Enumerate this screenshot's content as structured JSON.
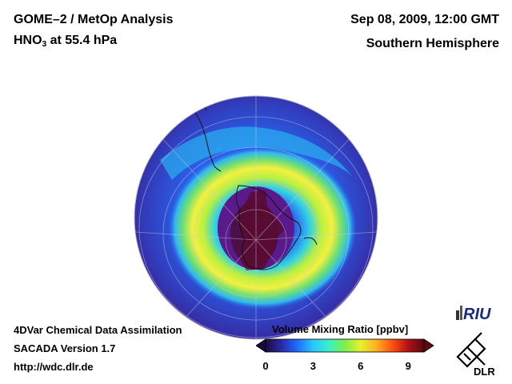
{
  "header": {
    "title_line1": "GOME–2 / MetOp Analysis",
    "title_line2_species": "HNO",
    "title_line2_sub": "3",
    "title_line2_rest": " at 55.4 hPa",
    "date": "Sep 08, 2009, 12:00 GMT",
    "region": "Southern Hemisphere"
  },
  "footer": {
    "line1": "4DVar Chemical Data Assimilation",
    "line2": "SACADA Version 1.7",
    "line3": "http://wdc.dlr.de"
  },
  "colorbar": {
    "title": "Volume Mixing Ratio [ppbv]",
    "ticks": [
      "0",
      "3",
      "6",
      "9"
    ],
    "min": 0,
    "max": 10,
    "tick_values": [
      0,
      3,
      6,
      9
    ],
    "colors": [
      "#1a0a3a",
      "#2a2aa8",
      "#1f6cff",
      "#28c8ff",
      "#3cf0c8",
      "#7cf048",
      "#e8f030",
      "#ffb020",
      "#ff5010",
      "#b01018",
      "#5a0a10"
    ]
  },
  "logos": {
    "riu": "RIU",
    "dlr": "DLR"
  },
  "map": {
    "projection": "orthographic-south-pole",
    "field_colors": {
      "background_low": "#3a2aa0",
      "mid_low": "#2060e0",
      "mid": "#30c0f0",
      "belt_green": "#50e080",
      "belt_yellow": "#f0f040",
      "polar_low": "#5a1040"
    }
  }
}
